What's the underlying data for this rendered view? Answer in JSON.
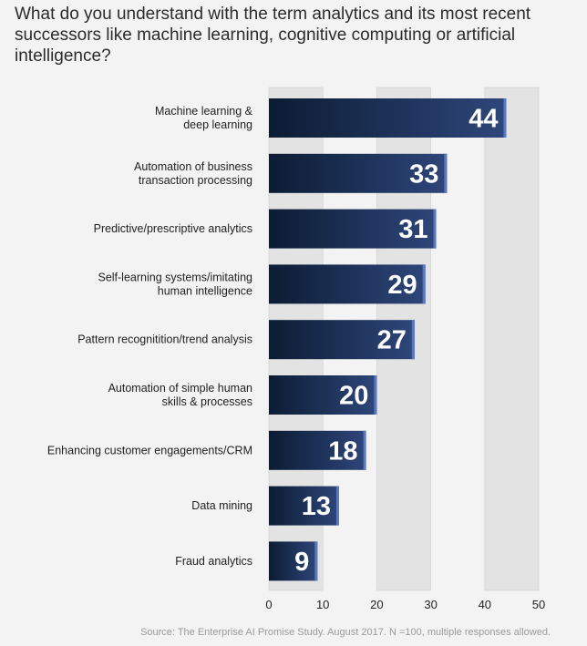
{
  "chart_data": {
    "type": "bar",
    "orientation": "horizontal",
    "title": "What do you understand with the term analytics and its most recent successors like machine learning, cognitive computing or artificial intelligence?",
    "categories": [
      [
        "Machine learning &",
        "deep learning"
      ],
      [
        "Automation of business",
        "transaction processing"
      ],
      [
        "Predictive/prescriptive analytics"
      ],
      [
        "Self-learning systems/imitating",
        "human intelligence"
      ],
      [
        "Pattern recognitition/trend analysis"
      ],
      [
        "Automation of simple human",
        "skills & processes"
      ],
      [
        "Enhancing customer engagements/CRM"
      ],
      [
        "Data mining"
      ],
      [
        "Fraud analytics"
      ]
    ],
    "values": [
      44,
      33,
      31,
      29,
      27,
      20,
      18,
      13,
      9
    ],
    "xlim": [
      0,
      50
    ],
    "xticks": [
      0,
      10,
      20,
      30,
      40,
      50
    ],
    "grid": "alternating vertical bands",
    "colors": {
      "bar_dark": "#0b1c33",
      "bar_light": "#2e467a",
      "bar_edge": "#5a78c0",
      "band": "#e3e3e3"
    },
    "source": "Source: The Enterprise AI Promise Study. August 2017. N =100, multiple responses allowed."
  }
}
